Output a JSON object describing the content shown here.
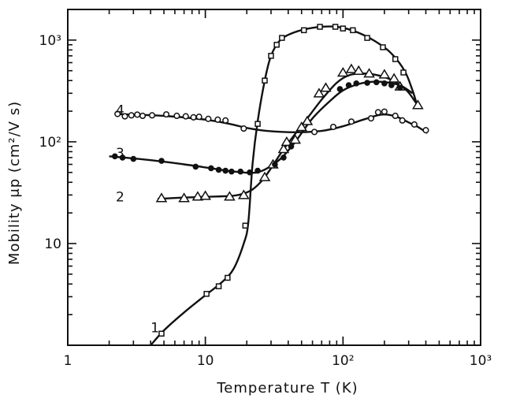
{
  "chart_data": {
    "type": "scatter",
    "xlabel": "Temperature T (K)",
    "ylabel": "Mobility μp (cm²/V s)",
    "x_scale": "log",
    "y_scale": "log",
    "xlim": [
      1,
      1000
    ],
    "ylim": [
      1,
      2000
    ],
    "grid": false,
    "x_ticks": [
      {
        "value": 1,
        "label": "1"
      },
      {
        "value": 10,
        "label": "10"
      },
      {
        "value": 100,
        "label": "10²"
      },
      {
        "value": 1000,
        "label": "10³"
      }
    ],
    "y_ticks": [
      {
        "value": 10,
        "label": "10"
      },
      {
        "value": 100,
        "label": "10²"
      },
      {
        "value": 1000,
        "label": "10³"
      }
    ],
    "series": [
      {
        "name": "1",
        "marker": "square",
        "label_at": [
          4.3,
          1.5
        ],
        "points": [
          [
            4.8,
            1.3
          ],
          [
            10.2,
            3.2
          ],
          [
            12.5,
            3.8
          ],
          [
            14.5,
            4.6
          ],
          [
            19.5,
            15
          ],
          [
            24,
            150
          ],
          [
            27,
            400
          ],
          [
            30,
            700
          ],
          [
            33,
            900
          ],
          [
            36,
            1050
          ],
          [
            52,
            1250
          ],
          [
            68,
            1350
          ],
          [
            88,
            1350
          ],
          [
            100,
            1300
          ],
          [
            118,
            1250
          ],
          [
            150,
            1050
          ],
          [
            195,
            850
          ],
          [
            240,
            650
          ],
          [
            275,
            480
          ]
        ],
        "curve": [
          [
            4,
            1
          ],
          [
            5,
            1.4
          ],
          [
            7,
            2.1
          ],
          [
            10,
            3.1
          ],
          [
            13,
            4.1
          ],
          [
            16,
            5.6
          ],
          [
            19,
            10
          ],
          [
            20.5,
            16
          ],
          [
            22,
            60
          ],
          [
            24,
            160
          ],
          [
            27,
            400
          ],
          [
            30,
            700
          ],
          [
            35,
            1000
          ],
          [
            45,
            1200
          ],
          [
            60,
            1320
          ],
          [
            80,
            1360
          ],
          [
            100,
            1320
          ],
          [
            130,
            1180
          ],
          [
            170,
            980
          ],
          [
            220,
            760
          ],
          [
            280,
            500
          ],
          [
            320,
            320
          ],
          [
            345,
            230
          ]
        ]
      },
      {
        "name": "2",
        "marker": "triangle",
        "label_at": [
          2.4,
          29
        ],
        "points": [
          [
            4.8,
            28
          ],
          [
            7,
            28
          ],
          [
            8.8,
            29
          ],
          [
            10,
            29.5
          ],
          [
            15,
            29
          ],
          [
            19,
            30
          ],
          [
            27,
            45
          ],
          [
            31,
            60
          ],
          [
            37,
            85
          ],
          [
            39,
            100
          ],
          [
            45,
            105
          ],
          [
            50,
            140
          ],
          [
            55,
            160
          ],
          [
            67,
            300
          ],
          [
            75,
            340
          ],
          [
            100,
            480
          ],
          [
            115,
            520
          ],
          [
            130,
            500
          ],
          [
            155,
            470
          ],
          [
            200,
            460
          ],
          [
            235,
            420
          ],
          [
            260,
            350
          ],
          [
            350,
            230
          ]
        ],
        "curve": [
          [
            4.5,
            27.5
          ],
          [
            8,
            28.5
          ],
          [
            12,
            29
          ],
          [
            16,
            29.5
          ],
          [
            19,
            31
          ],
          [
            22,
            34
          ],
          [
            26,
            42
          ],
          [
            30,
            55
          ],
          [
            36,
            80
          ],
          [
            45,
            120
          ],
          [
            55,
            170
          ],
          [
            70,
            260
          ],
          [
            90,
            380
          ],
          [
            110,
            450
          ],
          [
            140,
            470
          ],
          [
            180,
            450
          ],
          [
            230,
            400
          ],
          [
            290,
            320
          ],
          [
            340,
            240
          ]
        ]
      },
      {
        "name": "3",
        "marker": "filled-circle",
        "label_at": [
          2.4,
          78
        ],
        "points": [
          [
            2.2,
            72
          ],
          [
            2.5,
            70
          ],
          [
            3,
            68
          ],
          [
            4.8,
            65
          ],
          [
            8.5,
            57
          ],
          [
            11,
            55
          ],
          [
            12.5,
            53
          ],
          [
            14,
            52
          ],
          [
            15.5,
            51
          ],
          [
            18,
            51
          ],
          [
            21,
            50
          ],
          [
            24,
            52
          ],
          [
            32,
            60
          ],
          [
            37,
            70
          ],
          [
            42,
            90
          ],
          [
            95,
            330
          ],
          [
            110,
            360
          ],
          [
            125,
            375
          ],
          [
            150,
            380
          ],
          [
            175,
            385
          ],
          [
            200,
            375
          ],
          [
            225,
            360
          ],
          [
            260,
            340
          ]
        ],
        "curve": [
          [
            2,
            72
          ],
          [
            4,
            66
          ],
          [
            7,
            60
          ],
          [
            11,
            55
          ],
          [
            16,
            51
          ],
          [
            22,
            49.5
          ],
          [
            26,
            52
          ],
          [
            30,
            58
          ],
          [
            36,
            70
          ],
          [
            45,
            100
          ],
          [
            60,
            170
          ],
          [
            80,
            250
          ],
          [
            100,
            320
          ],
          [
            130,
            370
          ],
          [
            170,
            390
          ],
          [
            220,
            380
          ],
          [
            270,
            350
          ],
          [
            320,
            300
          ]
        ]
      },
      {
        "name": "4",
        "marker": "circle",
        "label_at": [
          2.4,
          205
        ],
        "points": [
          [
            2.3,
            188
          ],
          [
            2.6,
            178
          ],
          [
            2.9,
            182
          ],
          [
            3.2,
            185
          ],
          [
            3.5,
            180
          ],
          [
            4.1,
            182
          ],
          [
            5.2,
            186
          ],
          [
            6.2,
            180
          ],
          [
            7.2,
            178
          ],
          [
            8.2,
            174
          ],
          [
            9,
            176
          ],
          [
            10.5,
            168
          ],
          [
            12.3,
            165
          ],
          [
            14,
            162
          ],
          [
            19,
            135
          ],
          [
            62,
            125
          ],
          [
            85,
            140
          ],
          [
            115,
            158
          ],
          [
            160,
            170
          ],
          [
            180,
            195
          ],
          [
            200,
            198
          ],
          [
            240,
            180
          ],
          [
            270,
            162
          ],
          [
            330,
            148
          ],
          [
            400,
            130
          ]
        ],
        "curve": [
          [
            2.3,
            187
          ],
          [
            5,
            180
          ],
          [
            10,
            165
          ],
          [
            15,
            150
          ],
          [
            20,
            137
          ],
          [
            28,
            128
          ],
          [
            45,
            124
          ],
          [
            70,
            128
          ],
          [
            100,
            142
          ],
          [
            140,
            165
          ],
          [
            190,
            185
          ],
          [
            240,
            178
          ],
          [
            300,
            155
          ],
          [
            350,
            140
          ],
          [
            410,
            122
          ]
        ]
      }
    ]
  }
}
